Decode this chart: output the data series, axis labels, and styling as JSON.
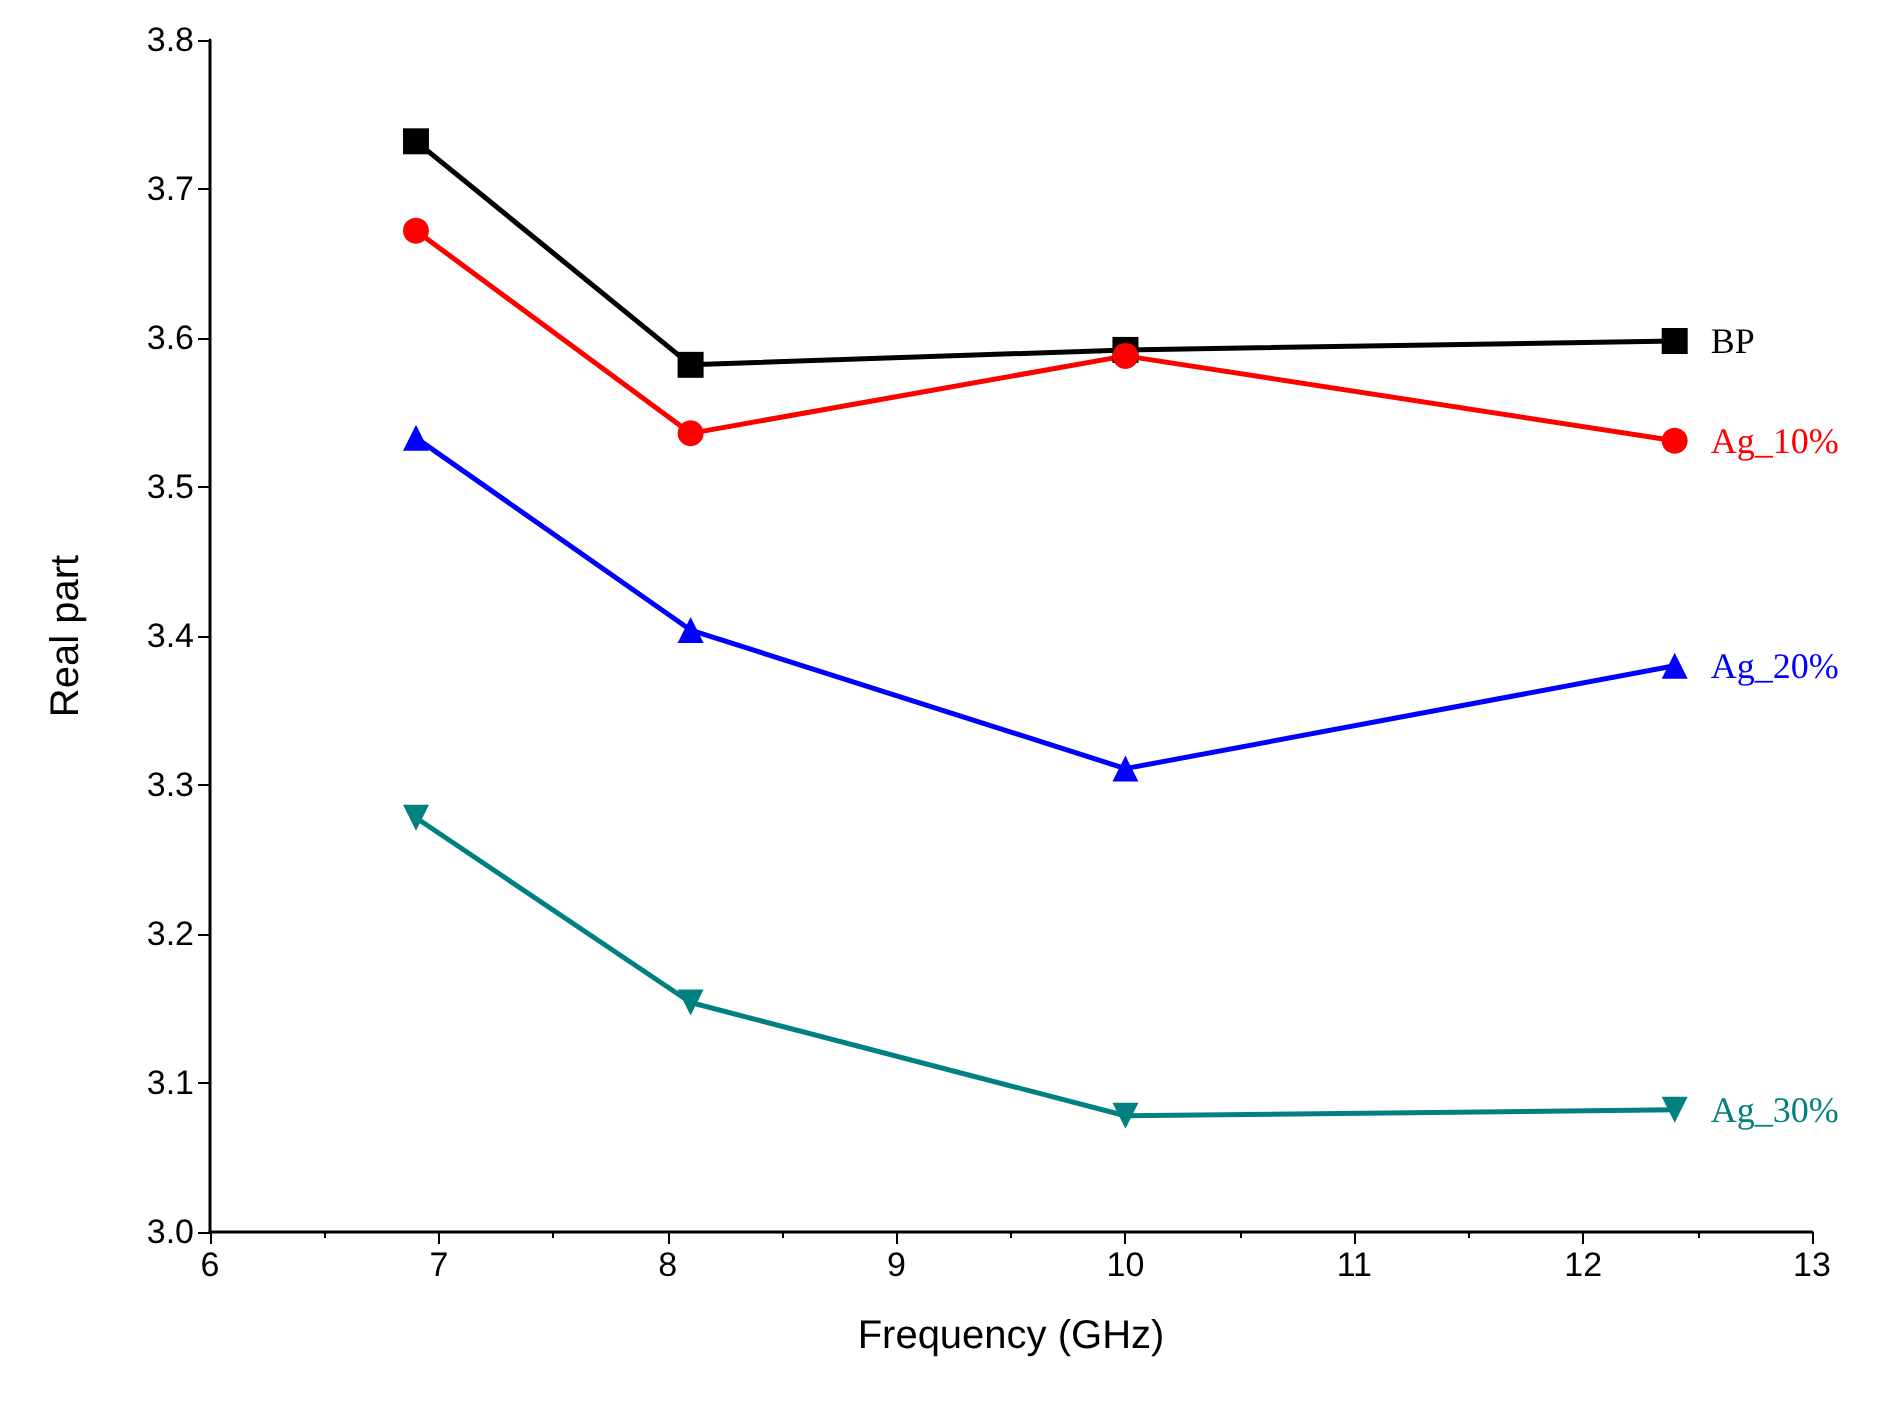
{
  "chart_data": {
    "type": "line",
    "xlabel": "Frequency (GHz)",
    "ylabel": "Real part",
    "x": [
      6.9,
      8.1,
      10.0,
      12.4
    ],
    "series": [
      {
        "name": "BP",
        "color": "#000000",
        "marker": "square",
        "values": [
          3.732,
          3.582,
          3.592,
          3.598
        ]
      },
      {
        "name": "Ag_10%",
        "color": "#ff0000",
        "marker": "circle",
        "values": [
          3.672,
          3.536,
          3.588,
          3.531
        ]
      },
      {
        "name": "Ag_20%",
        "color": "#0000ff",
        "marker": "triangle",
        "values": [
          3.533,
          3.404,
          3.311,
          3.38
        ]
      },
      {
        "name": "Ag_30%",
        "color": "#008080",
        "marker": "triangle-down",
        "values": [
          3.278,
          3.154,
          3.078,
          3.082
        ]
      }
    ],
    "xlim": [
      6,
      13
    ],
    "xticks": [
      6,
      7,
      8,
      9,
      10,
      11,
      12,
      13
    ],
    "ylim": [
      3.0,
      3.8
    ],
    "yticks": [
      {
        "value": 3.0,
        "label": "3.0"
      },
      3.1,
      3.2,
      3.3,
      3.4,
      3.5,
      3.6,
      3.7,
      3.8
    ],
    "grid": false,
    "legend": false
  }
}
